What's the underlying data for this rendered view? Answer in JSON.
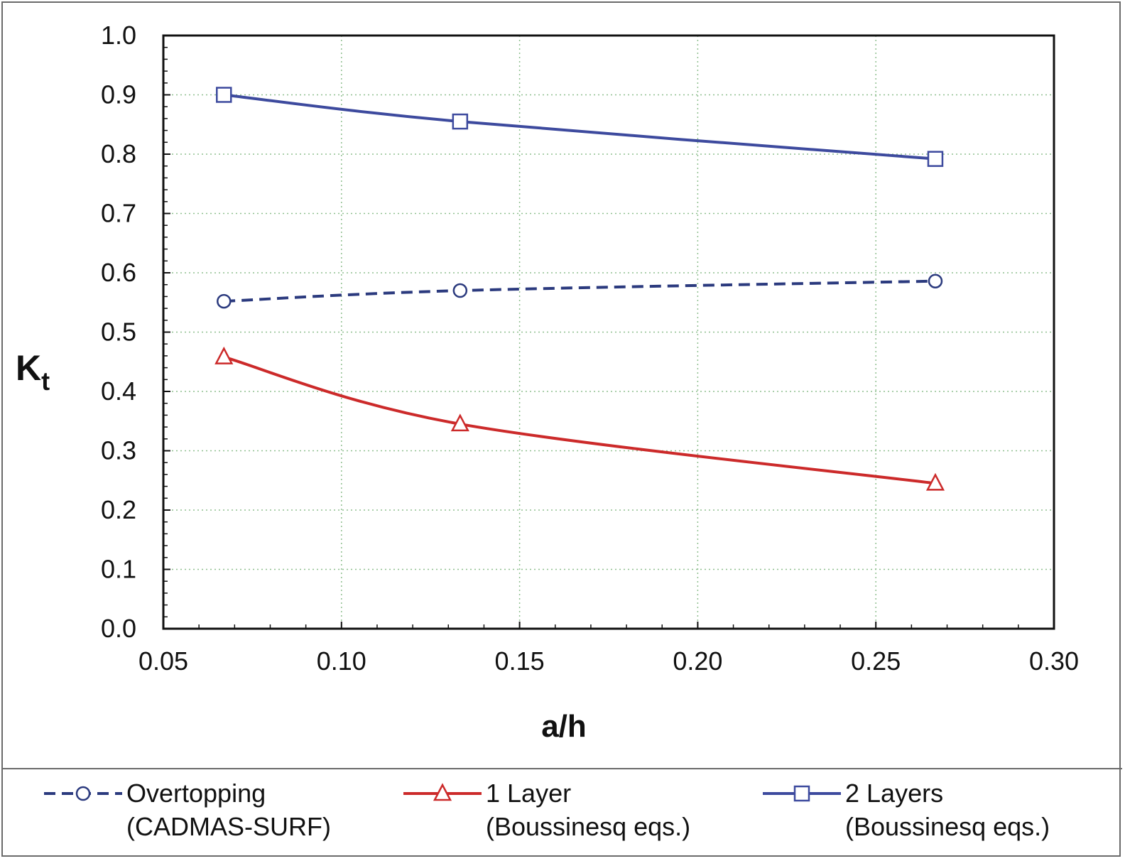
{
  "chart_data": {
    "type": "line",
    "xlabel": "a/h",
    "ylabel": "K",
    "ylabel_sub": "t",
    "xlim": [
      0.05,
      0.3
    ],
    "ylim": [
      0.0,
      1.0
    ],
    "x_ticks": [
      "0.05",
      "0.10",
      "0.15",
      "0.20",
      "0.25",
      "0.30"
    ],
    "y_ticks": [
      "0.0",
      "0.1",
      "0.2",
      "0.3",
      "0.4",
      "0.5",
      "0.6",
      "0.7",
      "0.8",
      "0.9",
      "1.0"
    ],
    "grid": true,
    "legend_position": "bottom",
    "series": [
      {
        "name": "Overtopping",
        "name_line2": "(CADMAS-SURF)",
        "marker": "circle",
        "line_style": "dashed",
        "color": "#2b3a7e",
        "x": [
          0.067,
          0.1333,
          0.2667
        ],
        "y": [
          0.552,
          0.57,
          0.586
        ]
      },
      {
        "name": "1 Layer",
        "name_line2": "(Boussinesq eqs.)",
        "marker": "triangle",
        "line_style": "solid",
        "color": "#cc2a2a",
        "x": [
          0.067,
          0.1333,
          0.2667
        ],
        "y": [
          0.458,
          0.345,
          0.245
        ]
      },
      {
        "name": "2 Layers",
        "name_line2": "(Boussinesq eqs.)",
        "marker": "square",
        "line_style": "solid",
        "color": "#3d4a9e",
        "x": [
          0.067,
          0.1333,
          0.2667
        ],
        "y": [
          0.9,
          0.855,
          0.792
        ]
      }
    ]
  }
}
